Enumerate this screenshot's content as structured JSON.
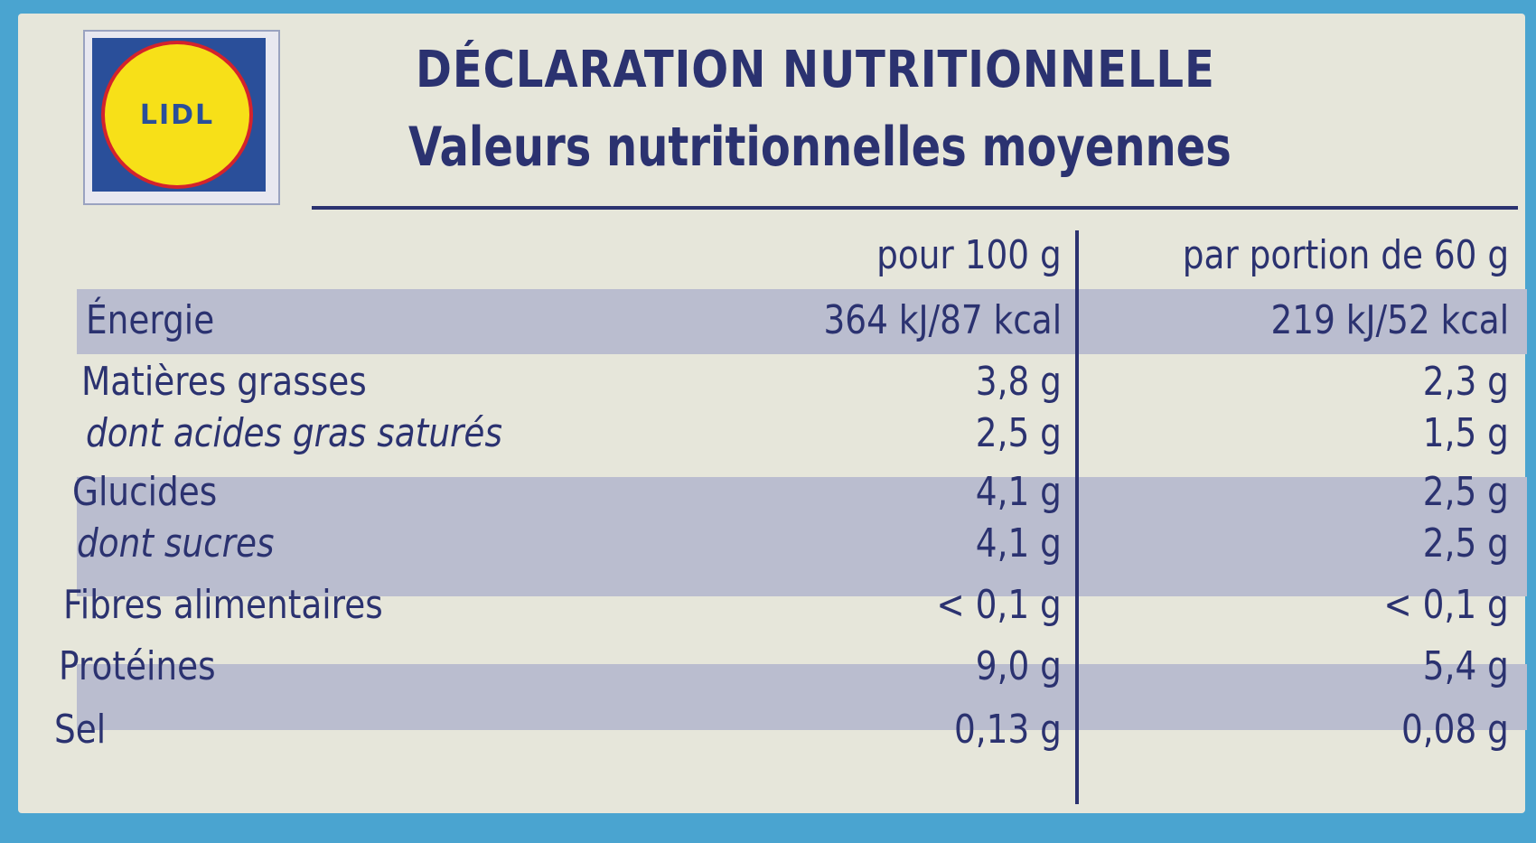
{
  "logo": "LIDL",
  "header": {
    "title": "DÉCLARATION NUTRITIONNELLE",
    "subtitle": "Valeurs nutritionnelles moyennes"
  },
  "table": {
    "columns": [
      "pour 100 g",
      "par portion de 60 g"
    ],
    "rows": [
      [
        "Énergie",
        "364 kJ/87 kcal",
        "219 kJ/52 kcal"
      ],
      [
        "Matières grasses",
        "3,8 g",
        "2,3 g"
      ],
      [
        "dont acides gras saturés",
        "2,5 g",
        "1,5 g"
      ],
      [
        "Glucides",
        "4,1 g",
        "2,5 g"
      ],
      [
        "dont sucres",
        "4,1 g",
        "2,5 g"
      ],
      [
        "Fibres alimentaires",
        "< 0,1 g",
        "< 0,1 g"
      ],
      [
        "Protéines",
        "9,0 g",
        "5,4 g"
      ],
      [
        "Sel",
        "0,13 g",
        "0,08 g"
      ]
    ]
  }
}
